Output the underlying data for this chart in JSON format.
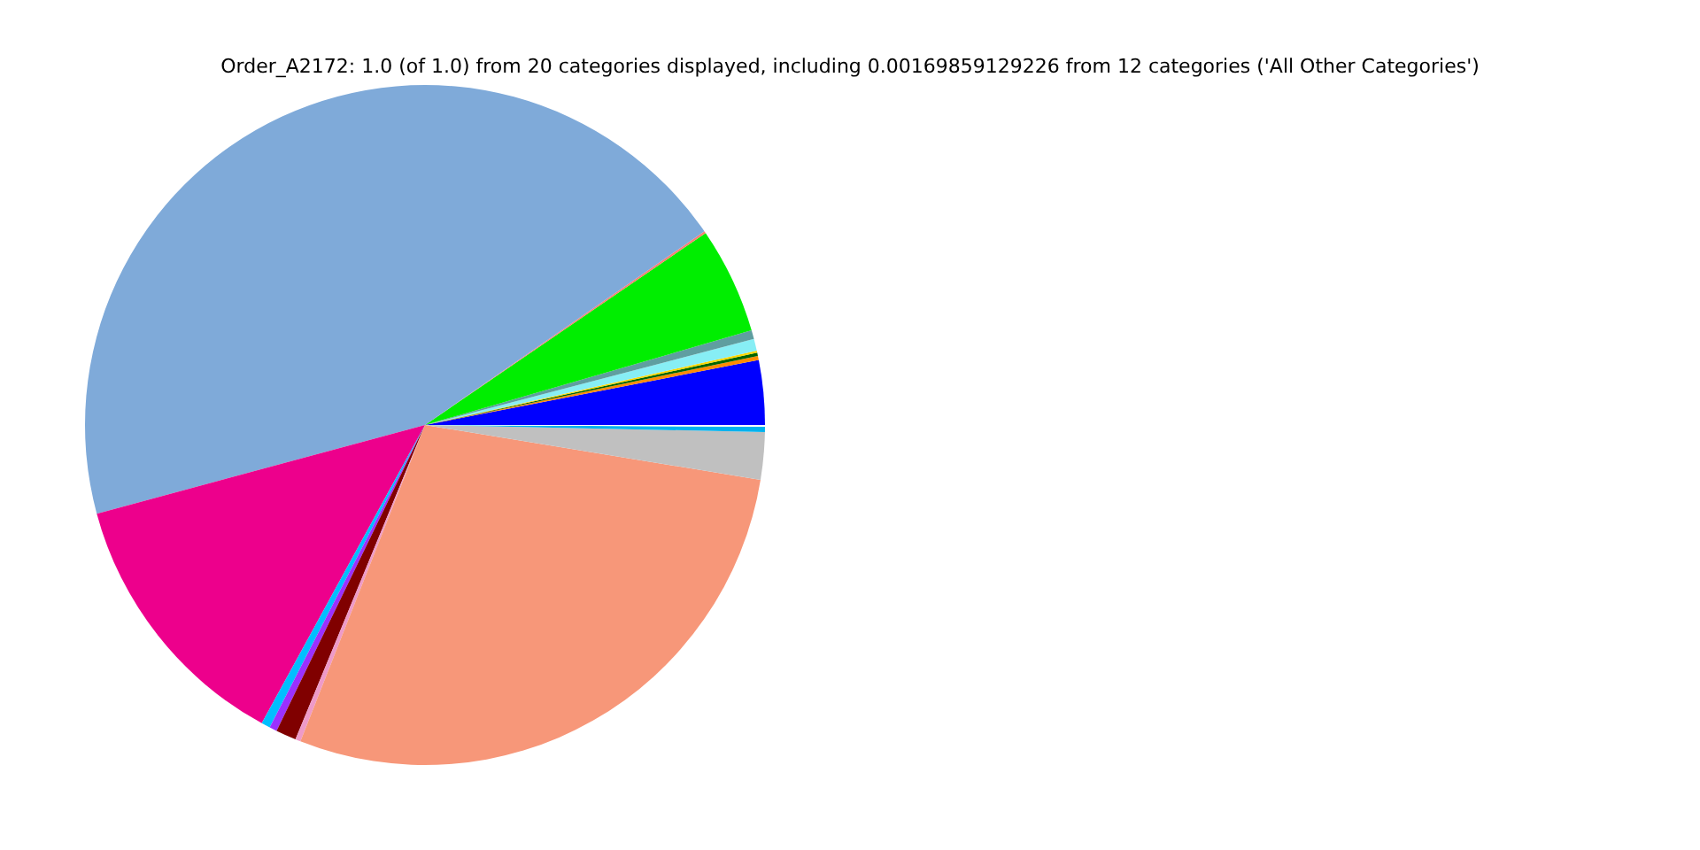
{
  "chart_data": {
    "type": "pie",
    "title": "Order_A2172: 1.0 (of 1.0) from 20 categories displayed, including 0.00169859129226 from 12 categories ('All Other Categories')",
    "categories": [
      null,
      null,
      null,
      null,
      null,
      null,
      null,
      null,
      null,
      null,
      null,
      null,
      null,
      null,
      null,
      null,
      null,
      null
    ],
    "values": [
      3.06,
      0.2,
      0.15,
      0.1,
      0.56,
      0.42,
      5.06,
      0.1,
      44.55,
      12.83,
      0.42,
      0.36,
      0.97,
      0.25,
      28.39,
      2.25,
      0.25,
      0.08
    ],
    "colors": [
      "#0000ff",
      "#ff8c00",
      "#006400",
      "#ffd700",
      "#87eef5",
      "#5f9ea0",
      "#00ee00",
      "#fa8072",
      "#7faad9",
      "#ed008c",
      "#00bfff",
      "#9b30ff",
      "#800000",
      "#ee9ac8",
      "#f79779",
      "#c0c0c0",
      "#00b2ee",
      "#ffffff"
    ],
    "legend": false
  }
}
